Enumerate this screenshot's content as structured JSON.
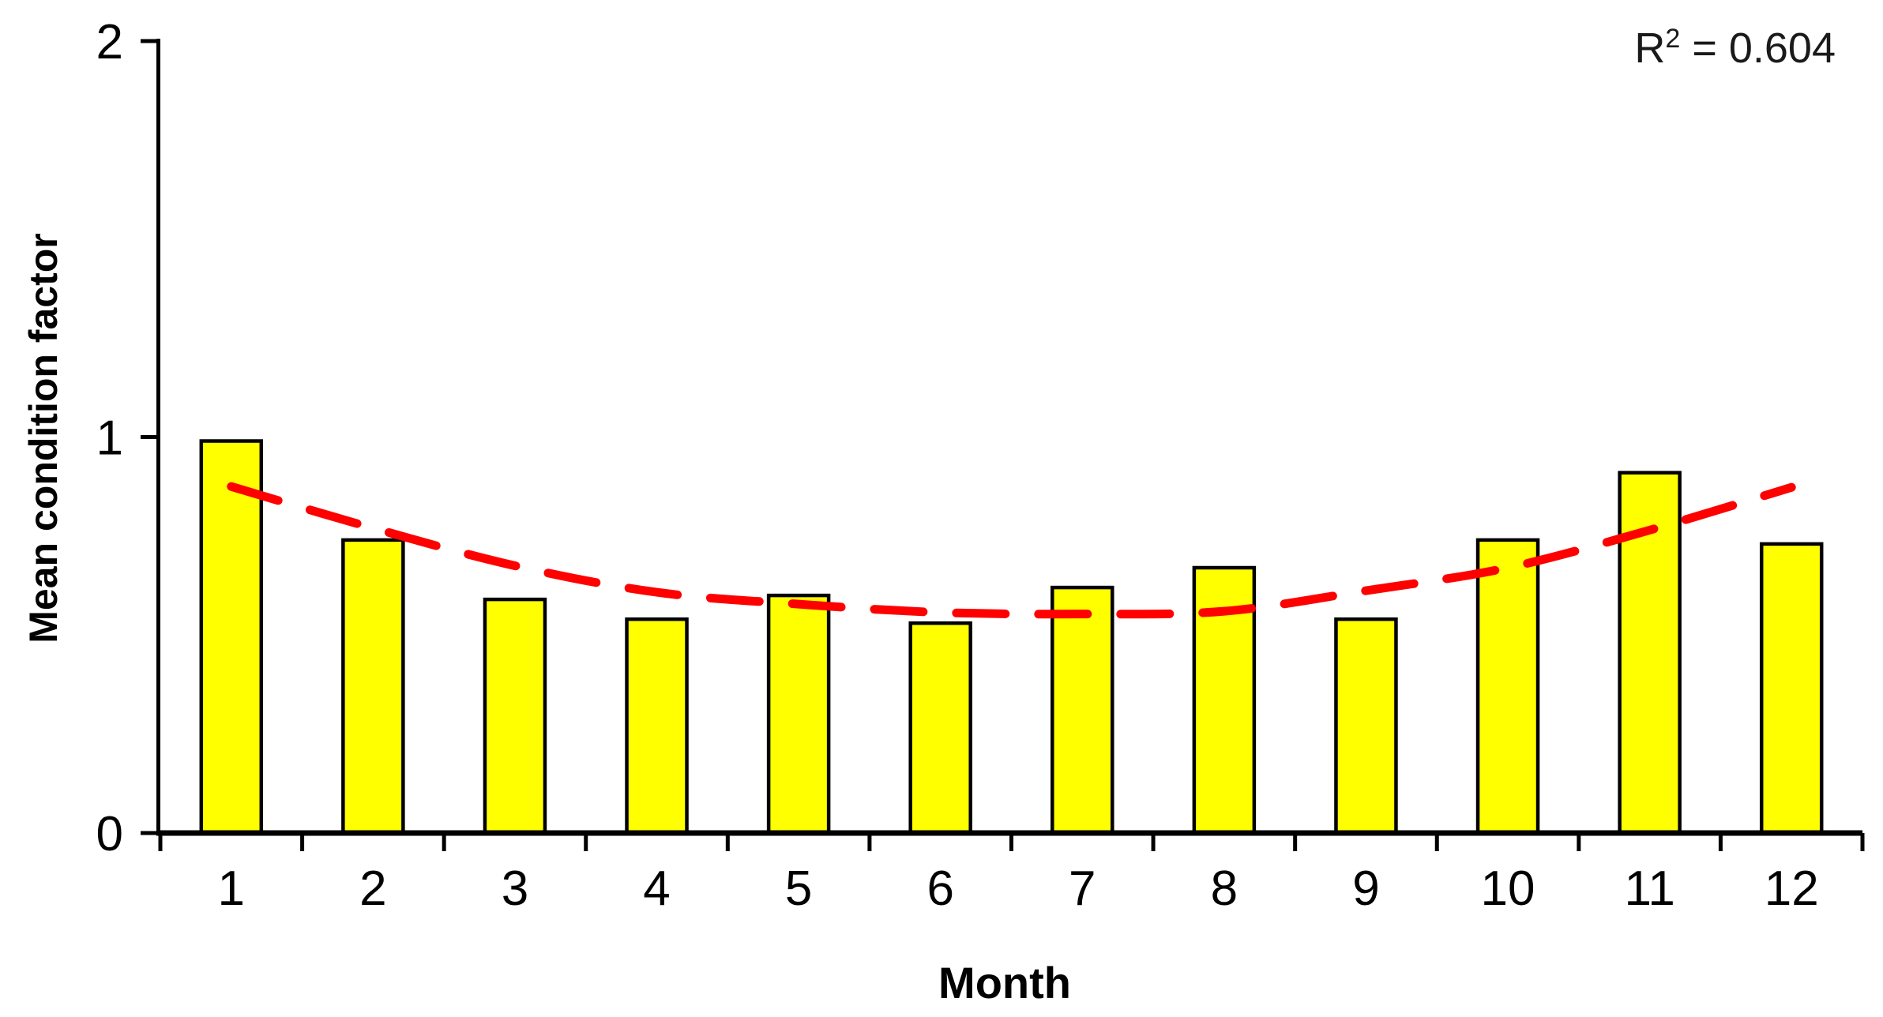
{
  "chart_data": {
    "type": "bar",
    "title": "",
    "xlabel": "Month",
    "ylabel": "Mean condition factor",
    "categories": [
      "1",
      "2",
      "3",
      "4",
      "5",
      "6",
      "7",
      "8",
      "9",
      "10",
      "11",
      "12"
    ],
    "values": [
      0.99,
      0.74,
      0.59,
      0.54,
      0.6,
      0.53,
      0.62,
      0.67,
      0.54,
      0.74,
      0.91,
      0.73
    ],
    "ylim": [
      0,
      2
    ],
    "yticks": [
      0,
      1,
      2
    ],
    "grid": false,
    "legend": false,
    "bar_fill": "#FFFF00",
    "bar_stroke": "#000000",
    "axis_color": "#000000",
    "trendline": {
      "type": "polynomial_order_2",
      "style": "dashed",
      "color": "#FF0000",
      "r_squared": 0.604,
      "values_by_month": [
        0.875,
        0.77,
        0.675,
        0.608,
        0.578,
        0.557,
        0.553,
        0.56,
        0.612,
        0.67,
        0.765,
        0.873
      ]
    }
  },
  "annotation": {
    "r_base": "R",
    "r_exponent": "2",
    "r_equals_value": " = 0.604"
  }
}
